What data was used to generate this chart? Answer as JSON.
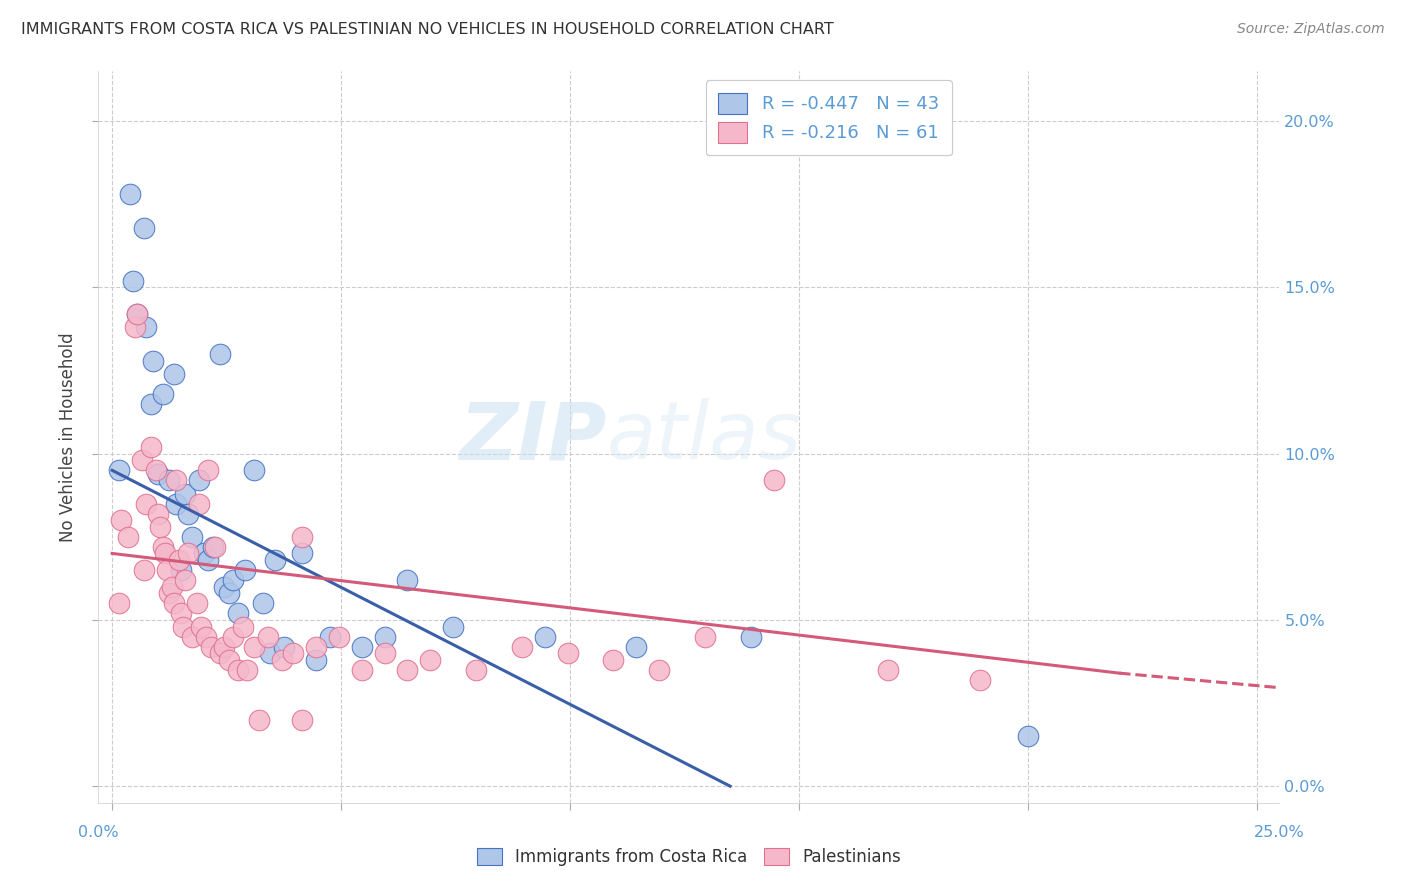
{
  "title": "IMMIGRANTS FROM COSTA RICA VS PALESTINIAN NO VEHICLES IN HOUSEHOLD CORRELATION CHART",
  "source": "Source: ZipAtlas.com",
  "ylabel": "No Vehicles in Household",
  "ytick_values": [
    0.0,
    5.0,
    10.0,
    15.0,
    20.0
  ],
  "xtick_values": [
    0.0,
    5.0,
    10.0,
    15.0,
    20.0,
    25.0
  ],
  "xlim": [
    -0.3,
    25.5
  ],
  "ylim": [
    -0.5,
    21.5
  ],
  "watermark_zip": "ZIP",
  "watermark_atlas": "atlas",
  "legend_blue_label": "Immigrants from Costa Rica",
  "legend_pink_label": "Palestinians",
  "blue_color": "#aec6e8",
  "pink_color": "#f5b8cb",
  "blue_edge_color": "#4472c4",
  "pink_edge_color": "#e07090",
  "blue_line_color": "#3a5fa8",
  "pink_line_color": "#d45a7a",
  "axis_color": "#5b9bd5",
  "grid_color": "#cccccc",
  "blue_scatter": [
    [
      0.15,
      9.5
    ],
    [
      0.4,
      17.8
    ],
    [
      0.45,
      15.2
    ],
    [
      0.55,
      14.2
    ],
    [
      0.7,
      16.8
    ],
    [
      0.75,
      13.8
    ],
    [
      0.85,
      11.5
    ],
    [
      0.9,
      12.8
    ],
    [
      1.0,
      9.4
    ],
    [
      1.1,
      11.8
    ],
    [
      1.25,
      9.2
    ],
    [
      1.35,
      12.4
    ],
    [
      1.4,
      8.5
    ],
    [
      1.5,
      6.5
    ],
    [
      1.6,
      8.8
    ],
    [
      1.65,
      8.2
    ],
    [
      1.75,
      7.5
    ],
    [
      1.9,
      9.2
    ],
    [
      2.0,
      7.0
    ],
    [
      2.1,
      6.8
    ],
    [
      2.2,
      7.2
    ],
    [
      2.35,
      13.0
    ],
    [
      2.45,
      6.0
    ],
    [
      2.55,
      5.8
    ],
    [
      2.65,
      6.2
    ],
    [
      2.75,
      5.2
    ],
    [
      2.9,
      6.5
    ],
    [
      3.1,
      9.5
    ],
    [
      3.3,
      5.5
    ],
    [
      3.45,
      4.0
    ],
    [
      3.55,
      6.8
    ],
    [
      3.75,
      4.2
    ],
    [
      4.15,
      7.0
    ],
    [
      4.45,
      3.8
    ],
    [
      4.75,
      4.5
    ],
    [
      5.45,
      4.2
    ],
    [
      5.95,
      4.5
    ],
    [
      6.45,
      6.2
    ],
    [
      7.45,
      4.8
    ],
    [
      9.45,
      4.5
    ],
    [
      11.45,
      4.2
    ],
    [
      13.95,
      4.5
    ],
    [
      20.0,
      1.5
    ]
  ],
  "pink_scatter": [
    [
      0.15,
      5.5
    ],
    [
      0.2,
      8.0
    ],
    [
      0.35,
      7.5
    ],
    [
      0.5,
      13.8
    ],
    [
      0.55,
      14.2
    ],
    [
      0.65,
      9.8
    ],
    [
      0.7,
      6.5
    ],
    [
      0.75,
      8.5
    ],
    [
      0.85,
      10.2
    ],
    [
      0.95,
      9.5
    ],
    [
      1.0,
      8.2
    ],
    [
      1.05,
      7.8
    ],
    [
      1.1,
      7.2
    ],
    [
      1.15,
      7.0
    ],
    [
      1.2,
      6.5
    ],
    [
      1.25,
      5.8
    ],
    [
      1.3,
      6.0
    ],
    [
      1.35,
      5.5
    ],
    [
      1.4,
      9.2
    ],
    [
      1.45,
      6.8
    ],
    [
      1.5,
      5.2
    ],
    [
      1.55,
      4.8
    ],
    [
      1.6,
      6.2
    ],
    [
      1.65,
      7.0
    ],
    [
      1.75,
      4.5
    ],
    [
      1.85,
      5.5
    ],
    [
      1.9,
      8.5
    ],
    [
      1.95,
      4.8
    ],
    [
      2.05,
      4.5
    ],
    [
      2.1,
      9.5
    ],
    [
      2.15,
      4.2
    ],
    [
      2.25,
      7.2
    ],
    [
      2.35,
      4.0
    ],
    [
      2.45,
      4.2
    ],
    [
      2.55,
      3.8
    ],
    [
      2.65,
      4.5
    ],
    [
      2.75,
      3.5
    ],
    [
      2.85,
      4.8
    ],
    [
      2.95,
      3.5
    ],
    [
      3.1,
      4.2
    ],
    [
      3.2,
      2.0
    ],
    [
      3.4,
      4.5
    ],
    [
      3.7,
      3.8
    ],
    [
      3.95,
      4.0
    ],
    [
      4.15,
      7.5
    ],
    [
      4.15,
      2.0
    ],
    [
      4.45,
      4.2
    ],
    [
      4.95,
      4.5
    ],
    [
      5.45,
      3.5
    ],
    [
      5.95,
      4.0
    ],
    [
      6.45,
      3.5
    ],
    [
      6.95,
      3.8
    ],
    [
      7.95,
      3.5
    ],
    [
      8.95,
      4.2
    ],
    [
      9.95,
      4.0
    ],
    [
      10.95,
      3.8
    ],
    [
      11.95,
      3.5
    ],
    [
      12.95,
      4.5
    ],
    [
      14.45,
      9.2
    ],
    [
      16.95,
      3.5
    ],
    [
      18.95,
      3.2
    ]
  ],
  "blue_regline": [
    0.0,
    9.5,
    13.5,
    0.0
  ],
  "pink_regline_solid": [
    0.0,
    7.0,
    22.0,
    3.4
  ],
  "pink_regline_dashed": [
    22.0,
    3.4,
    26.0,
    2.9
  ]
}
